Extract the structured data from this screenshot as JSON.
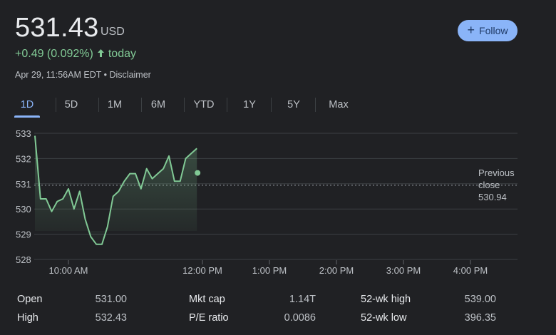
{
  "header": {
    "top_cut_text": "",
    "price": "531.43",
    "currency": "USD",
    "follow_label": "Follow",
    "change": "+0.49 (0.092%)",
    "change_period": "today",
    "timestamp": "Apr 29, 11:56AM EDT",
    "separator": "•",
    "disclaimer": "Disclaimer"
  },
  "tabs": [
    {
      "label": "1D",
      "active": true
    },
    {
      "label": "5D",
      "active": false
    },
    {
      "label": "1M",
      "active": false
    },
    {
      "label": "6M",
      "active": false
    },
    {
      "label": "YTD",
      "active": false
    },
    {
      "label": "1Y",
      "active": false
    },
    {
      "label": "5Y",
      "active": false
    },
    {
      "label": "Max",
      "active": false
    }
  ],
  "colors": {
    "accent": "#8ab4f8",
    "positive": "#81c995",
    "background": "#202124",
    "grid": "#3c4043"
  },
  "chart_data": {
    "type": "area",
    "x_unit": "time of day",
    "x": [
      "9:30",
      "9:35",
      "9:40",
      "9:45",
      "9:50",
      "9:55",
      "10:00",
      "10:05",
      "10:10",
      "10:15",
      "10:20",
      "10:25",
      "10:30",
      "10:35",
      "10:40",
      "10:45",
      "10:50",
      "10:55",
      "11:00",
      "11:05",
      "11:10",
      "11:15",
      "11:20",
      "11:25",
      "11:30",
      "11:35",
      "11:40",
      "11:45",
      "11:50",
      "11:55"
    ],
    "values": [
      532.9,
      530.4,
      530.4,
      529.9,
      530.3,
      530.4,
      530.8,
      530.0,
      530.7,
      529.6,
      528.9,
      528.6,
      528.6,
      529.3,
      530.5,
      530.7,
      531.1,
      531.4,
      531.4,
      530.8,
      531.6,
      531.2,
      531.4,
      531.6,
      532.1,
      531.1,
      531.1,
      532.0,
      532.2,
      532.4
    ],
    "last_value": 531.43,
    "y_ticks": [
      533,
      532,
      531,
      530,
      529,
      528
    ],
    "ylim": [
      528,
      533
    ],
    "x_ticks": [
      "10:00 AM",
      "12:00 PM",
      "1:00 PM",
      "2:00 PM",
      "3:00 PM",
      "4:00 PM"
    ],
    "previous_close": 530.94,
    "previous_close_label_1": "Previous",
    "previous_close_label_2": "close",
    "previous_close_value": "530.94",
    "grid": true,
    "line_color": "#81c995"
  },
  "stats": {
    "col1": [
      {
        "label": "Open",
        "value": "531.00"
      },
      {
        "label": "High",
        "value": "532.43"
      }
    ],
    "col2": [
      {
        "label": "Mkt cap",
        "value": "1.14T"
      },
      {
        "label": "P/E ratio",
        "value": "0.0086"
      }
    ],
    "col3": [
      {
        "label": "52-wk high",
        "value": "539.00"
      },
      {
        "label": "52-wk low",
        "value": "396.35"
      }
    ]
  }
}
